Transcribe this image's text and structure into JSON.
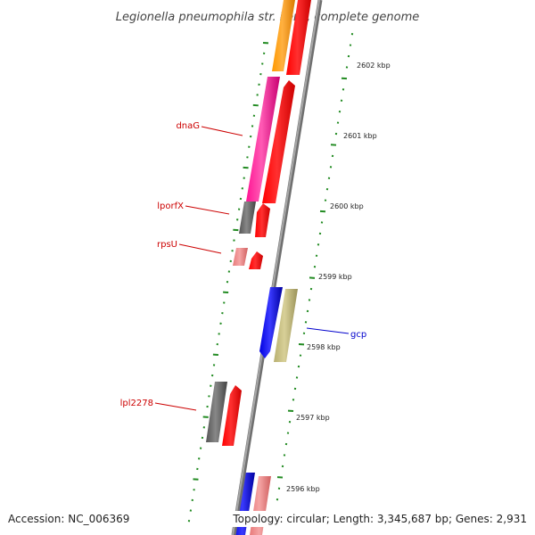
{
  "title": "Legionella pneumophila str. Lens, complete genome",
  "footer": {
    "accession": "Accession: NC_006369",
    "topology": "Topology: circular; Length: 3,345,687 bp; Genes: 2,931"
  },
  "colors": {
    "backbone": "#888888",
    "tick": "#228b22",
    "forward_gene": "#ff0000",
    "label_red": "#cc0000",
    "label_blue": "#0000cc"
  },
  "kbp_labels": [
    "2602 kbp",
    "2601 kbp",
    "2600 kbp",
    "2599 kbp",
    "2598 kbp",
    "2597 kbp",
    "2596 kbp"
  ],
  "gene_labels": {
    "dnaG": "dnaG",
    "lporfX": "lporfX",
    "rpsU": "rpsU",
    "gcp": "gcp",
    "lpl2278": "lpl2278"
  }
}
